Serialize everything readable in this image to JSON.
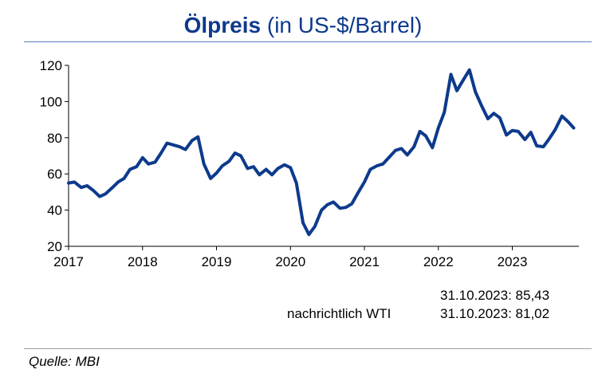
{
  "title": {
    "bold": "Ölpreis",
    "rest": "(in US-$/Barrel)"
  },
  "notes": [
    {
      "label": "",
      "value": "31.10.2023: 85,43"
    },
    {
      "label": "nachrichtlich WTI",
      "value": "31.10.2023: 81,02"
    }
  ],
  "source": "Quelle: MBI",
  "colors": {
    "line": "#0d3a8c",
    "title": "#0d3a8c"
  },
  "chart_data": {
    "type": "line",
    "title": "Ölpreis (in US-$/Barrel)",
    "xlabel": "",
    "ylabel": "",
    "ylim": [
      20,
      120
    ],
    "xlim": [
      2017.0,
      2023.9
    ],
    "yticks": [
      20,
      40,
      60,
      80,
      100,
      120
    ],
    "xticks": [
      "2017",
      "2018",
      "2019",
      "2020",
      "2021",
      "2022",
      "2023"
    ],
    "grid": false,
    "legend": "none",
    "series": [
      {
        "name": "",
        "x": [
          2017.0,
          2017.08,
          2017.17,
          2017.25,
          2017.33,
          2017.42,
          2017.5,
          2017.58,
          2017.67,
          2017.75,
          2017.83,
          2017.92,
          2018.0,
          2018.08,
          2018.17,
          2018.25,
          2018.33,
          2018.42,
          2018.5,
          2018.58,
          2018.67,
          2018.75,
          2018.83,
          2018.92,
          2019.0,
          2019.08,
          2019.17,
          2019.25,
          2019.33,
          2019.42,
          2019.5,
          2019.58,
          2019.67,
          2019.75,
          2019.83,
          2019.92,
          2020.0,
          2020.08,
          2020.17,
          2020.25,
          2020.33,
          2020.42,
          2020.5,
          2020.58,
          2020.67,
          2020.75,
          2020.83,
          2020.92,
          2021.0,
          2021.08,
          2021.17,
          2021.25,
          2021.33,
          2021.42,
          2021.5,
          2021.58,
          2021.67,
          2021.75,
          2021.83,
          2021.92,
          2022.0,
          2022.08,
          2022.17,
          2022.25,
          2022.33,
          2022.42,
          2022.5,
          2022.58,
          2022.67,
          2022.75,
          2022.83,
          2022.92,
          2023.0,
          2023.08,
          2023.17,
          2023.25,
          2023.33,
          2023.42,
          2023.5,
          2023.58,
          2023.67,
          2023.75,
          2023.83
        ],
        "values": [
          55.0,
          55.5,
          52.5,
          53.5,
          51.0,
          47.5,
          49.0,
          52.0,
          55.5,
          57.5,
          62.5,
          64.0,
          69.0,
          65.5,
          66.5,
          71.5,
          77.0,
          76.0,
          75.0,
          73.5,
          78.5,
          80.5,
          65.5,
          57.5,
          60.5,
          64.5,
          67.0,
          71.5,
          70.0,
          63.0,
          64.0,
          59.5,
          62.5,
          59.5,
          63.0,
          65.0,
          63.5,
          55.0,
          33.0,
          26.5,
          31.0,
          40.0,
          43.0,
          44.5,
          41.0,
          41.5,
          43.5,
          50.0,
          55.5,
          62.5,
          64.5,
          65.5,
          69.0,
          73.0,
          74.0,
          70.5,
          75.0,
          83.5,
          81.0,
          74.5,
          85.5,
          94.0,
          115.0,
          106.0,
          111.5,
          117.5,
          105.5,
          98.0,
          90.5,
          93.5,
          91.0,
          81.5,
          84.0,
          83.5,
          79.0,
          83.0,
          75.5,
          75.0,
          79.5,
          84.5,
          92.0,
          89.0,
          85.43
        ]
      }
    ]
  }
}
